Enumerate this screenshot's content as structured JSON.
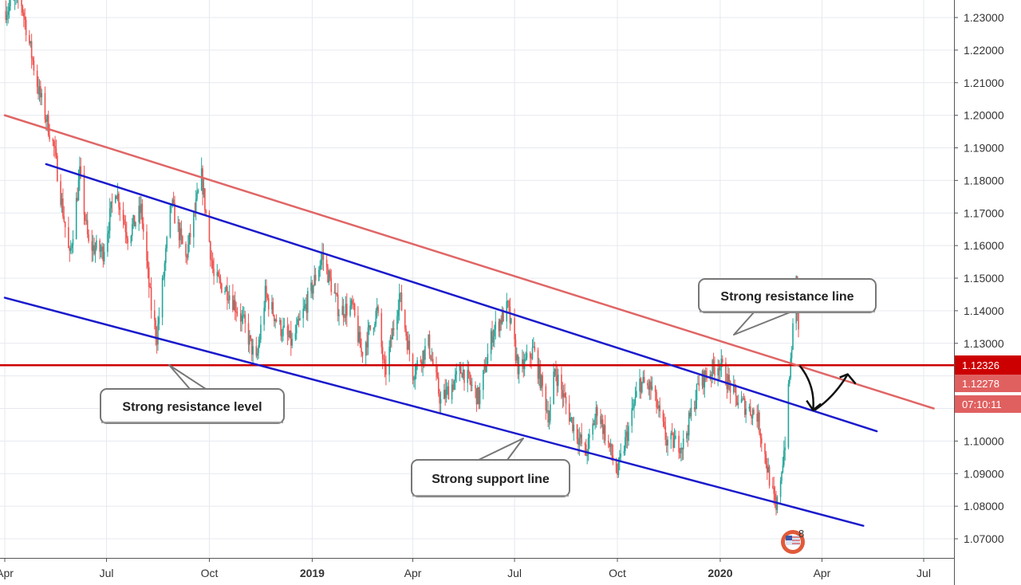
{
  "chart_data": {
    "type": "candlestick",
    "instrument_hint": "EURUSD daily",
    "y_ticks": [
      "1.23000",
      "1.22000",
      "1.21000",
      "1.20000",
      "1.19000",
      "1.18000",
      "1.17000",
      "1.16000",
      "1.15000",
      "1.14000",
      "1.13000",
      "1.12000",
      "1.11000",
      "1.10000",
      "1.09000",
      "1.08000",
      "1.07000"
    ],
    "y_tick_values": [
      1.23,
      1.22,
      1.21,
      1.2,
      1.19,
      1.18,
      1.17,
      1.16,
      1.15,
      1.14,
      1.13,
      1.12,
      1.11,
      1.1,
      1.09,
      1.08,
      1.07
    ],
    "ylim": [
      1.0665,
      1.2355
    ],
    "x_ticks": [
      {
        "label": "Apr",
        "date": "2018-04-01",
        "bold": false
      },
      {
        "label": "Jul",
        "date": "2018-07-01",
        "bold": false
      },
      {
        "label": "Oct",
        "date": "2018-10-01",
        "bold": false
      },
      {
        "label": "2019",
        "date": "2019-01-01",
        "bold": true
      },
      {
        "label": "Apr",
        "date": "2019-04-01",
        "bold": false
      },
      {
        "label": "Jul",
        "date": "2019-07-01",
        "bold": false
      },
      {
        "label": "Oct",
        "date": "2019-10-01",
        "bold": false
      },
      {
        "label": "2020",
        "date": "2020-01-01",
        "bold": true
      },
      {
        "label": "Apr",
        "date": "2020-04-01",
        "bold": false
      },
      {
        "label": "Jul",
        "date": "2020-07-01",
        "bold": false
      }
    ],
    "price_path": [
      [
        "2018-04-01",
        1.232
      ],
      [
        "2018-04-15",
        1.236
      ],
      [
        "2018-05-01",
        1.208
      ],
      [
        "2018-05-15",
        1.19
      ],
      [
        "2018-05-29",
        1.156
      ],
      [
        "2018-06-07",
        1.182
      ],
      [
        "2018-06-15",
        1.16
      ],
      [
        "2018-06-28",
        1.158
      ],
      [
        "2018-07-09",
        1.178
      ],
      [
        "2018-07-20",
        1.163
      ],
      [
        "2018-08-01",
        1.171
      ],
      [
        "2018-08-10",
        1.141
      ],
      [
        "2018-08-15",
        1.132
      ],
      [
        "2018-08-28",
        1.173
      ],
      [
        "2018-09-10",
        1.156
      ],
      [
        "2018-09-24",
        1.181
      ],
      [
        "2018-10-05",
        1.15
      ],
      [
        "2018-10-18",
        1.146
      ],
      [
        "2018-11-01",
        1.136
      ],
      [
        "2018-11-12",
        1.124
      ],
      [
        "2018-11-20",
        1.145
      ],
      [
        "2018-12-03",
        1.135
      ],
      [
        "2018-12-14",
        1.13
      ],
      [
        "2018-12-31",
        1.146
      ],
      [
        "2019-01-10",
        1.157
      ],
      [
        "2019-01-25",
        1.14
      ],
      [
        "2019-02-06",
        1.141
      ],
      [
        "2019-02-14",
        1.127
      ],
      [
        "2019-02-28",
        1.14
      ],
      [
        "2019-03-07",
        1.12
      ],
      [
        "2019-03-20",
        1.145
      ],
      [
        "2019-04-01",
        1.121
      ],
      [
        "2019-04-15",
        1.13
      ],
      [
        "2019-04-26",
        1.112
      ],
      [
        "2019-05-15",
        1.122
      ],
      [
        "2019-05-30",
        1.113
      ],
      [
        "2019-06-11",
        1.133
      ],
      [
        "2019-06-25",
        1.141
      ],
      [
        "2019-07-05",
        1.121
      ],
      [
        "2019-07-18",
        1.128
      ],
      [
        "2019-08-01",
        1.107
      ],
      [
        "2019-08-06",
        1.122
      ],
      [
        "2019-08-20",
        1.107
      ],
      [
        "2019-09-03",
        1.096
      ],
      [
        "2019-09-13",
        1.11
      ],
      [
        "2019-10-01",
        1.09
      ],
      [
        "2019-10-21",
        1.118
      ],
      [
        "2019-11-01",
        1.116
      ],
      [
        "2019-11-14",
        1.1
      ],
      [
        "2019-11-29",
        1.099
      ],
      [
        "2019-12-13",
        1.118
      ],
      [
        "2019-12-31",
        1.124
      ],
      [
        "2020-01-15",
        1.113
      ],
      [
        "2020-02-03",
        1.108
      ],
      [
        "2020-02-20",
        1.078
      ],
      [
        "2020-02-28",
        1.1
      ],
      [
        "2020-03-09",
        1.149
      ],
      [
        "2020-03-11",
        1.133
      ]
    ],
    "trendlines": [
      {
        "role": "resistance",
        "color": "#e06666",
        "p1": [
          "2018-04-01",
          1.2
        ],
        "p2": [
          "2020-07-10",
          1.11
        ]
      },
      {
        "role": "channel-upper",
        "color": "#1a1acc",
        "p1": [
          "2018-05-08",
          1.185
        ],
        "p2": [
          "2020-05-20",
          1.103
        ]
      },
      {
        "role": "channel-lower",
        "color": "#1a1acc",
        "p1": [
          "2018-04-01",
          1.144
        ],
        "p2": [
          "2020-05-08",
          1.074
        ]
      }
    ],
    "horizontal_level": {
      "value": 1.12326,
      "color": "#cc0000"
    },
    "price_labels": [
      {
        "text": "1.12326",
        "color": "#cc0000",
        "value": 1.12326
      },
      {
        "text": "1.12278",
        "color": "#e06060",
        "value": 1.12278
      },
      {
        "text": "07:10:11",
        "color": "#e06060",
        "value": 1.1205
      }
    ],
    "forecast_path": [
      [
        "2020-03-12",
        1.1232
      ],
      [
        "2020-03-24",
        1.1095
      ],
      [
        "2020-04-12",
        1.115
      ],
      [
        "2020-04-24",
        1.1205
      ]
    ],
    "annotations": [
      {
        "name": "callout-resistance-line",
        "text": "Strong resistance line"
      },
      {
        "name": "callout-resistance-level",
        "text": "Strong resistance level"
      },
      {
        "name": "callout-support-line",
        "text": "Strong support line"
      }
    ],
    "flag_badge_count": "8",
    "colors": {
      "up": "#26a69a",
      "down": "#ef5350",
      "grid": "#e6e9ef",
      "axis": "#555555"
    }
  }
}
